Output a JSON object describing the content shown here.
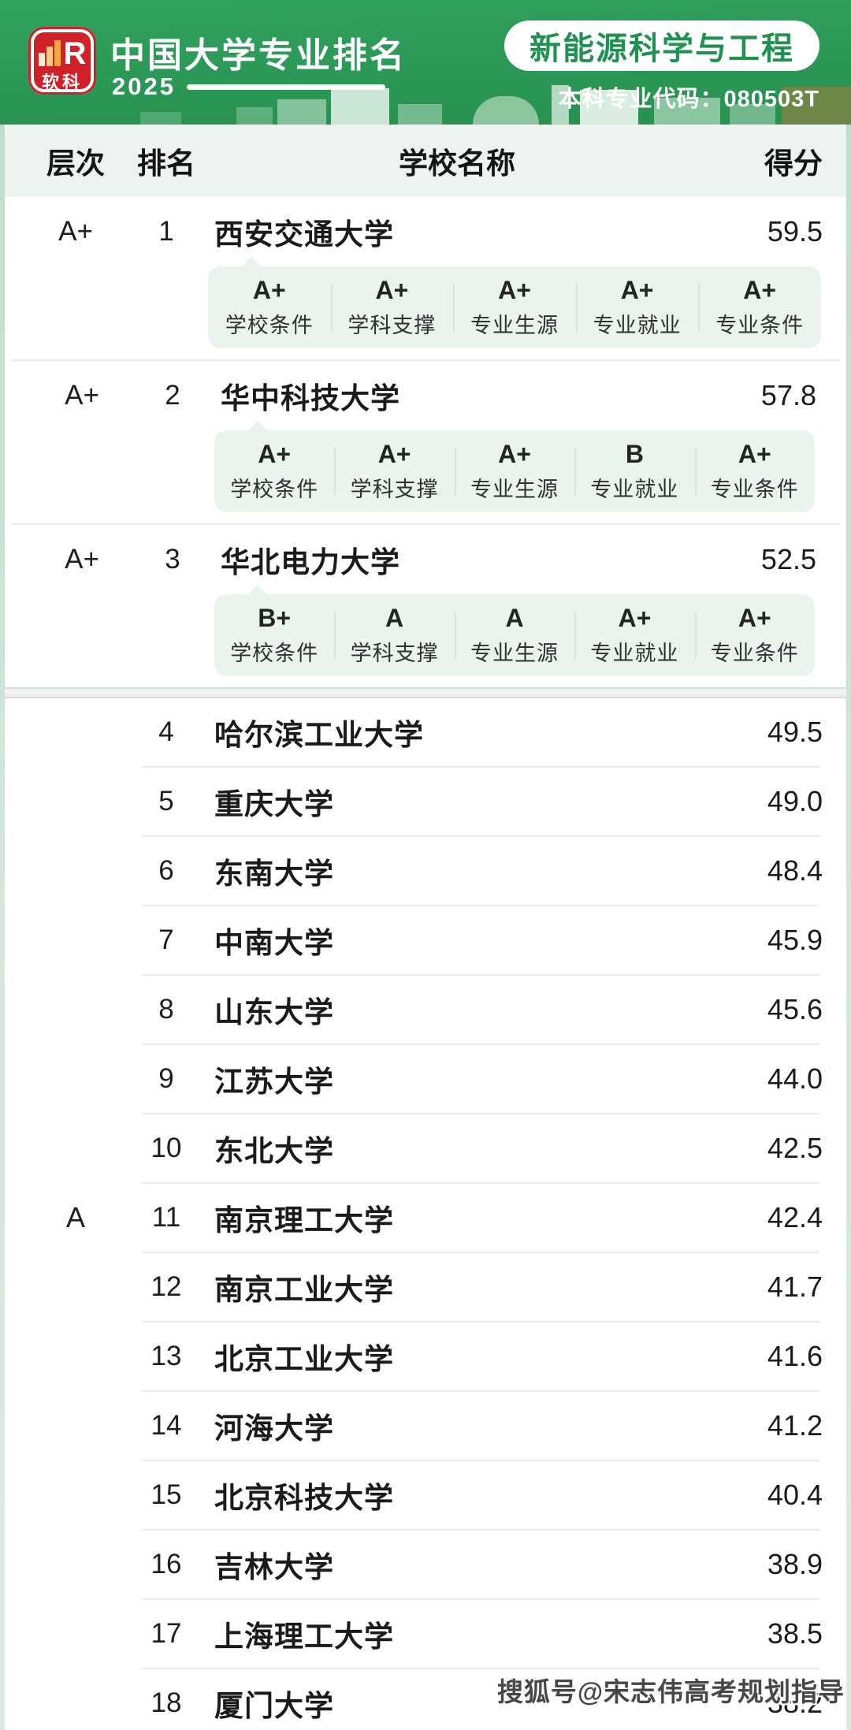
{
  "header": {
    "brand": "软科",
    "brand_letter": "R",
    "title": "中国大学专业排名",
    "year": "2025",
    "major_pill": "新能源科学与工程",
    "code_label": "本科专业代码：",
    "code_value": "080503T",
    "colors": {
      "header_green": "#2b9756",
      "logo_red": "#ce2128",
      "pill_text_green": "#1f9150"
    }
  },
  "table": {
    "columns": {
      "tier": "层次",
      "rank": "排名",
      "school": "学校名称",
      "score": "得分"
    },
    "metric_labels": [
      "学校条件",
      "学科支撑",
      "专业生源",
      "专业就业",
      "专业条件"
    ],
    "tier_groups": [
      {
        "tier": "A+",
        "rows": [
          {
            "rank": "1",
            "school": "西安交通大学",
            "score": "59.5",
            "grades": [
              "A+",
              "A+",
              "A+",
              "A+",
              "A+"
            ]
          },
          {
            "rank": "2",
            "school": "华中科技大学",
            "score": "57.8",
            "grades": [
              "A+",
              "A+",
              "A+",
              "B",
              "A+"
            ]
          },
          {
            "rank": "3",
            "school": "华北电力大学",
            "score": "52.5",
            "grades": [
              "B+",
              "A",
              "A",
              "A+",
              "A+"
            ]
          }
        ]
      },
      {
        "tier": "A",
        "rows": [
          {
            "rank": "4",
            "school": "哈尔滨工业大学",
            "score": "49.5"
          },
          {
            "rank": "5",
            "school": "重庆大学",
            "score": "49.0"
          },
          {
            "rank": "6",
            "school": "东南大学",
            "score": "48.4"
          },
          {
            "rank": "7",
            "school": "中南大学",
            "score": "45.9"
          },
          {
            "rank": "8",
            "school": "山东大学",
            "score": "45.6"
          },
          {
            "rank": "9",
            "school": "江苏大学",
            "score": "44.0"
          },
          {
            "rank": "10",
            "school": "东北大学",
            "score": "42.5"
          },
          {
            "rank": "11",
            "school": "南京理工大学",
            "score": "42.4"
          },
          {
            "rank": "12",
            "school": "南京工业大学",
            "score": "41.7"
          },
          {
            "rank": "13",
            "school": "北京工业大学",
            "score": "41.6"
          },
          {
            "rank": "14",
            "school": "河海大学",
            "score": "41.2"
          },
          {
            "rank": "15",
            "school": "北京科技大学",
            "score": "40.4"
          },
          {
            "rank": "16",
            "school": "吉林大学",
            "score": "38.9"
          },
          {
            "rank": "17",
            "school": "上海理工大学",
            "score": "38.5"
          },
          {
            "rank": "18",
            "school": "厦门大学",
            "score": "38.2"
          }
        ]
      }
    ]
  },
  "watermark": {
    "text": "搜狐号@宋志伟高考规划指导"
  },
  "chart_data": {
    "type": "table",
    "title": "中国大学专业排名 2025 — 新能源科学与工程（本科专业代码：080503T）",
    "columns": [
      "层次",
      "排名",
      "学校名称",
      "得分"
    ],
    "rows": [
      [
        "A+",
        1,
        "西安交通大学",
        59.5
      ],
      [
        "A+",
        2,
        "华中科技大学",
        57.8
      ],
      [
        "A+",
        3,
        "华北电力大学",
        52.5
      ],
      [
        "A",
        4,
        "哈尔滨工业大学",
        49.5
      ],
      [
        "A",
        5,
        "重庆大学",
        49.0
      ],
      [
        "A",
        6,
        "东南大学",
        48.4
      ],
      [
        "A",
        7,
        "中南大学",
        45.9
      ],
      [
        "A",
        8,
        "山东大学",
        45.6
      ],
      [
        "A",
        9,
        "江苏大学",
        44.0
      ],
      [
        "A",
        10,
        "东北大学",
        42.5
      ],
      [
        "A",
        11,
        "南京理工大学",
        42.4
      ],
      [
        "A",
        12,
        "南京工业大学",
        41.7
      ],
      [
        "A",
        13,
        "北京工业大学",
        41.6
      ],
      [
        "A",
        14,
        "河海大学",
        41.2
      ],
      [
        "A",
        15,
        "北京科技大学",
        40.4
      ],
      [
        "A",
        16,
        "吉林大学",
        38.9
      ],
      [
        "A",
        17,
        "上海理工大学",
        38.5
      ],
      [
        "A",
        18,
        "厦门大学",
        38.2
      ]
    ],
    "metric_columns": [
      "学校条件",
      "学科支撑",
      "专业生源",
      "专业就业",
      "专业条件"
    ],
    "metric_grades": {
      "1": [
        "A+",
        "A+",
        "A+",
        "A+",
        "A+"
      ],
      "2": [
        "A+",
        "A+",
        "A+",
        "B",
        "A+"
      ],
      "3": [
        "B+",
        "A",
        "A",
        "A+",
        "A+"
      ]
    }
  }
}
